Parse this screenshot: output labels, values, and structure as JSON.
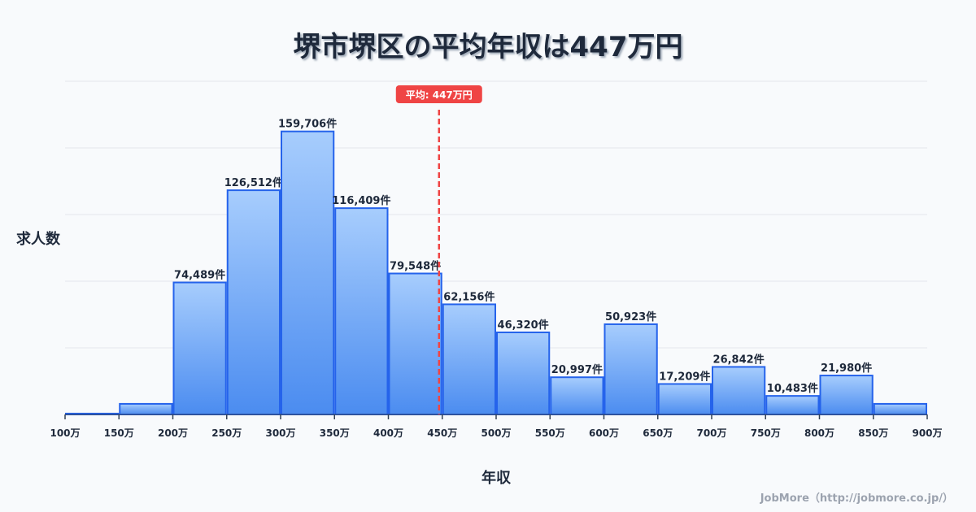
{
  "chart_data": {
    "type": "bar",
    "title": "堺市堺区の平均年収は447万円",
    "xlabel": "年収",
    "ylabel": "求人数",
    "x_ticks": [
      "100万",
      "150万",
      "200万",
      "250万",
      "300万",
      "350万",
      "400万",
      "450万",
      "500万",
      "550万",
      "600万",
      "650万",
      "700万",
      "750万",
      "800万",
      "850万",
      "900万"
    ],
    "bins_start": [
      100,
      150,
      200,
      250,
      300,
      350,
      400,
      450,
      500,
      550,
      600,
      650,
      700,
      750,
      800,
      850
    ],
    "values": [
      500,
      6000,
      74489,
      126512,
      159706,
      116409,
      79548,
      62156,
      46320,
      20997,
      50923,
      17209,
      26842,
      10483,
      21980,
      6000
    ],
    "data_labels": [
      "",
      "",
      "74,489件",
      "126,512件",
      "159,706件",
      "116,409件",
      "79,548件",
      "62,156件",
      "46,320件",
      "20,997件",
      "50,923件",
      "17,209件",
      "26,842件",
      "10,483件",
      "21,980件",
      ""
    ],
    "xlim": [
      100,
      900
    ],
    "ylim": [
      0,
      188000
    ],
    "grid": true,
    "mean": 447,
    "mean_label": "平均: 447万円",
    "colors": {
      "bar_top": "#a7cdfd",
      "bar_bottom": "#4b8cf0",
      "bar_stroke": "#2563eb",
      "mean_line": "#ef4444"
    }
  },
  "footer": "JobMore（http://jobmore.co.jp/）"
}
